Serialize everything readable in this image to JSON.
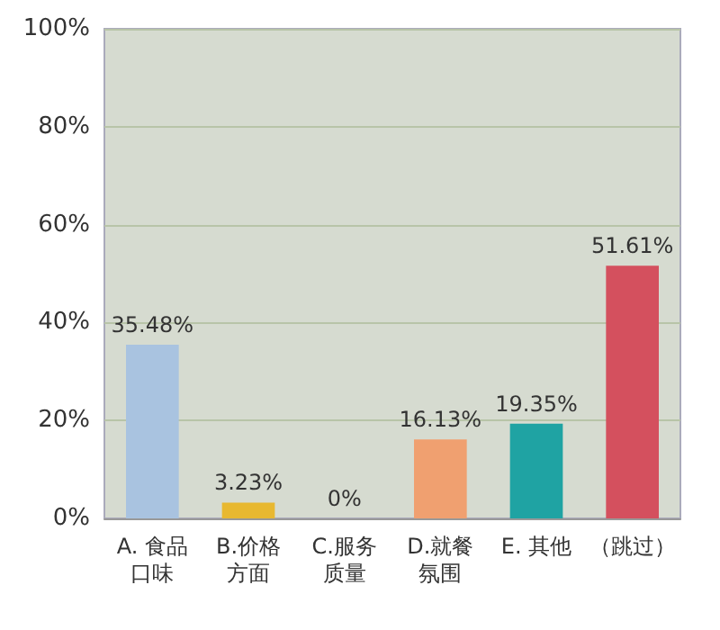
{
  "chart_data": {
    "type": "bar",
    "categories": [
      "A. 食品口味",
      "B.价格方面",
      "C.服务质量",
      "D.就餐氛围",
      "E. 其他",
      "（跳过）"
    ],
    "values": [
      35.48,
      3.23,
      0,
      16.13,
      19.35,
      51.61
    ],
    "colors": [
      "#a9c3e0",
      "#e8b830",
      "#9cc43c",
      "#f0a070",
      "#1fa3a3",
      "#d4505e"
    ],
    "value_labels": [
      "35.48%",
      "3.23%",
      "0%",
      "16.13%",
      "19.35%",
      "51.61%"
    ],
    "ylim": [
      0,
      100
    ],
    "yticks": [
      {
        "value": 0,
        "label": "0%"
      },
      {
        "value": 20,
        "label": "20%"
      },
      {
        "value": 40,
        "label": "40%"
      },
      {
        "value": 60,
        "label": "60%"
      },
      {
        "value": 80,
        "label": "80%"
      },
      {
        "value": 100,
        "label": "100%"
      }
    ],
    "grid": "y"
  }
}
